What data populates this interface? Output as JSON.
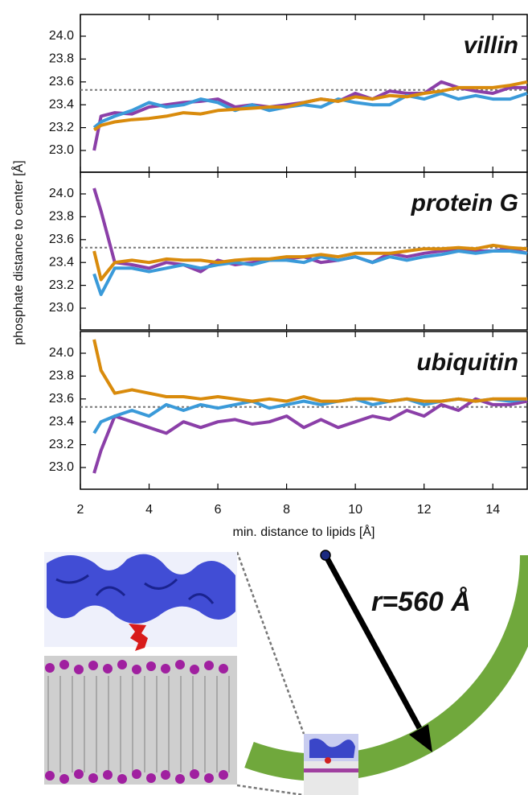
{
  "chart_data": [
    {
      "type": "line",
      "title": "villin",
      "ylabel": "phosphate distance to center [Å]",
      "x": [
        2.4,
        2.6,
        3,
        3.5,
        4,
        4.5,
        5,
        5.5,
        6,
        6.5,
        7,
        7.5,
        8,
        8.5,
        9,
        9.5,
        10,
        10.5,
        11,
        11.5,
        12,
        12.5,
        13,
        13.5,
        14,
        14.5,
        15
      ],
      "series": [
        {
          "color": "#8b3fa8",
          "values": [
            23.0,
            23.3,
            23.33,
            23.32,
            23.38,
            23.4,
            23.42,
            23.43,
            23.45,
            23.38,
            23.4,
            23.38,
            23.4,
            23.42,
            23.45,
            23.43,
            23.5,
            23.45,
            23.52,
            23.5,
            23.5,
            23.6,
            23.55,
            23.52,
            23.5,
            23.55,
            23.55
          ]
        },
        {
          "color": "#3a9ad9",
          "values": [
            23.2,
            23.25,
            23.3,
            23.35,
            23.42,
            23.38,
            23.4,
            23.45,
            23.42,
            23.35,
            23.4,
            23.35,
            23.38,
            23.4,
            23.38,
            23.45,
            23.42,
            23.4,
            23.4,
            23.48,
            23.45,
            23.5,
            23.45,
            23.48,
            23.45,
            23.45,
            23.5
          ]
        },
        {
          "color": "#d98b0c",
          "values": [
            23.18,
            23.22,
            23.25,
            23.27,
            23.28,
            23.3,
            23.33,
            23.32,
            23.35,
            23.36,
            23.37,
            23.38,
            23.38,
            23.42,
            23.45,
            23.43,
            23.47,
            23.45,
            23.48,
            23.47,
            23.5,
            23.52,
            23.55,
            23.55,
            23.55,
            23.57,
            23.6
          ]
        }
      ],
      "reference_line": 23.53,
      "xlim": [
        2,
        15
      ],
      "xticks": [
        2,
        4,
        6,
        8,
        10,
        12,
        14
      ],
      "ylim": [
        22.81,
        24.19
      ],
      "yticks": [
        {
          "value": 23,
          "label": "23.0"
        },
        23.2,
        23.4,
        23.6,
        23.8,
        {
          "value": 24,
          "label": "24.0"
        }
      ]
    },
    {
      "type": "line",
      "title": "protein G",
      "x": [
        2.4,
        2.6,
        3,
        3.5,
        4,
        4.5,
        5,
        5.5,
        6,
        6.5,
        7,
        7.5,
        8,
        8.5,
        9,
        9.5,
        10,
        10.5,
        11,
        11.5,
        12,
        12.5,
        13,
        13.5,
        14,
        14.5,
        15
      ],
      "series": [
        {
          "color": "#8b3fa8",
          "values": [
            24.05,
            23.85,
            23.4,
            23.38,
            23.35,
            23.4,
            23.38,
            23.32,
            23.42,
            23.38,
            23.4,
            23.42,
            23.43,
            23.45,
            23.4,
            23.42,
            23.45,
            23.4,
            23.48,
            23.45,
            23.48,
            23.5,
            23.52,
            23.5,
            23.5,
            23.52,
            23.48
          ]
        },
        {
          "color": "#3a9ad9",
          "values": [
            23.3,
            23.12,
            23.35,
            23.35,
            23.32,
            23.35,
            23.38,
            23.35,
            23.38,
            23.4,
            23.38,
            23.42,
            23.42,
            23.4,
            23.45,
            23.42,
            23.45,
            23.4,
            23.45,
            23.42,
            23.45,
            23.47,
            23.5,
            23.48,
            23.5,
            23.5,
            23.48
          ]
        },
        {
          "color": "#d98b0c",
          "values": [
            23.5,
            23.25,
            23.4,
            23.42,
            23.4,
            23.43,
            23.42,
            23.42,
            23.4,
            23.42,
            23.43,
            23.43,
            23.45,
            23.45,
            23.47,
            23.45,
            23.48,
            23.48,
            23.48,
            23.5,
            23.52,
            23.52,
            23.53,
            23.52,
            23.55,
            23.53,
            23.52
          ]
        }
      ],
      "reference_line": 23.53,
      "xlim": [
        2,
        15
      ],
      "xticks": [
        2,
        4,
        6,
        8,
        10,
        12,
        14
      ],
      "ylim": [
        22.81,
        24.19
      ],
      "yticks": [
        {
          "value": 23,
          "label": "23.0"
        },
        23.2,
        23.4,
        23.6,
        23.8,
        {
          "value": 24,
          "label": "24.0"
        }
      ]
    },
    {
      "type": "line",
      "title": "ubiquitin",
      "xlabel": "min. distance to lipids [Å]",
      "x": [
        2.4,
        2.6,
        3,
        3.5,
        4,
        4.5,
        5,
        5.5,
        6,
        6.5,
        7,
        7.5,
        8,
        8.5,
        9,
        9.5,
        10,
        10.5,
        11,
        11.5,
        12,
        12.5,
        13,
        13.5,
        14,
        14.5,
        15
      ],
      "series": [
        {
          "color": "#8b3fa8",
          "values": [
            22.95,
            23.15,
            23.45,
            23.4,
            23.35,
            23.3,
            23.4,
            23.35,
            23.4,
            23.42,
            23.38,
            23.4,
            23.45,
            23.35,
            23.42,
            23.35,
            23.4,
            23.45,
            23.42,
            23.5,
            23.45,
            23.55,
            23.5,
            23.6,
            23.55,
            23.55,
            23.58
          ]
        },
        {
          "color": "#3a9ad9",
          "values": [
            23.3,
            23.4,
            23.45,
            23.5,
            23.45,
            23.55,
            23.5,
            23.55,
            23.52,
            23.55,
            23.58,
            23.52,
            23.55,
            23.58,
            23.55,
            23.58,
            23.6,
            23.55,
            23.58,
            23.6,
            23.55,
            23.58,
            23.6,
            23.58,
            23.6,
            23.58,
            23.6
          ]
        },
        {
          "color": "#d98b0c",
          "values": [
            24.12,
            23.85,
            23.65,
            23.68,
            23.65,
            23.62,
            23.62,
            23.6,
            23.62,
            23.6,
            23.58,
            23.6,
            23.58,
            23.62,
            23.58,
            23.58,
            23.6,
            23.6,
            23.58,
            23.6,
            23.58,
            23.58,
            23.6,
            23.58,
            23.6,
            23.6,
            23.6
          ]
        }
      ],
      "reference_line": 23.53,
      "xlim": [
        2,
        15
      ],
      "xticks": [
        2,
        4,
        6,
        8,
        10,
        12,
        14
      ],
      "ylim": [
        22.81,
        24.19
      ],
      "yticks": [
        {
          "value": 23,
          "label": "23.0"
        },
        23.2,
        23.4,
        23.6,
        23.8,
        {
          "value": 24,
          "label": "24.0"
        }
      ]
    }
  ],
  "illustration": {
    "label": "r=560 Å"
  }
}
